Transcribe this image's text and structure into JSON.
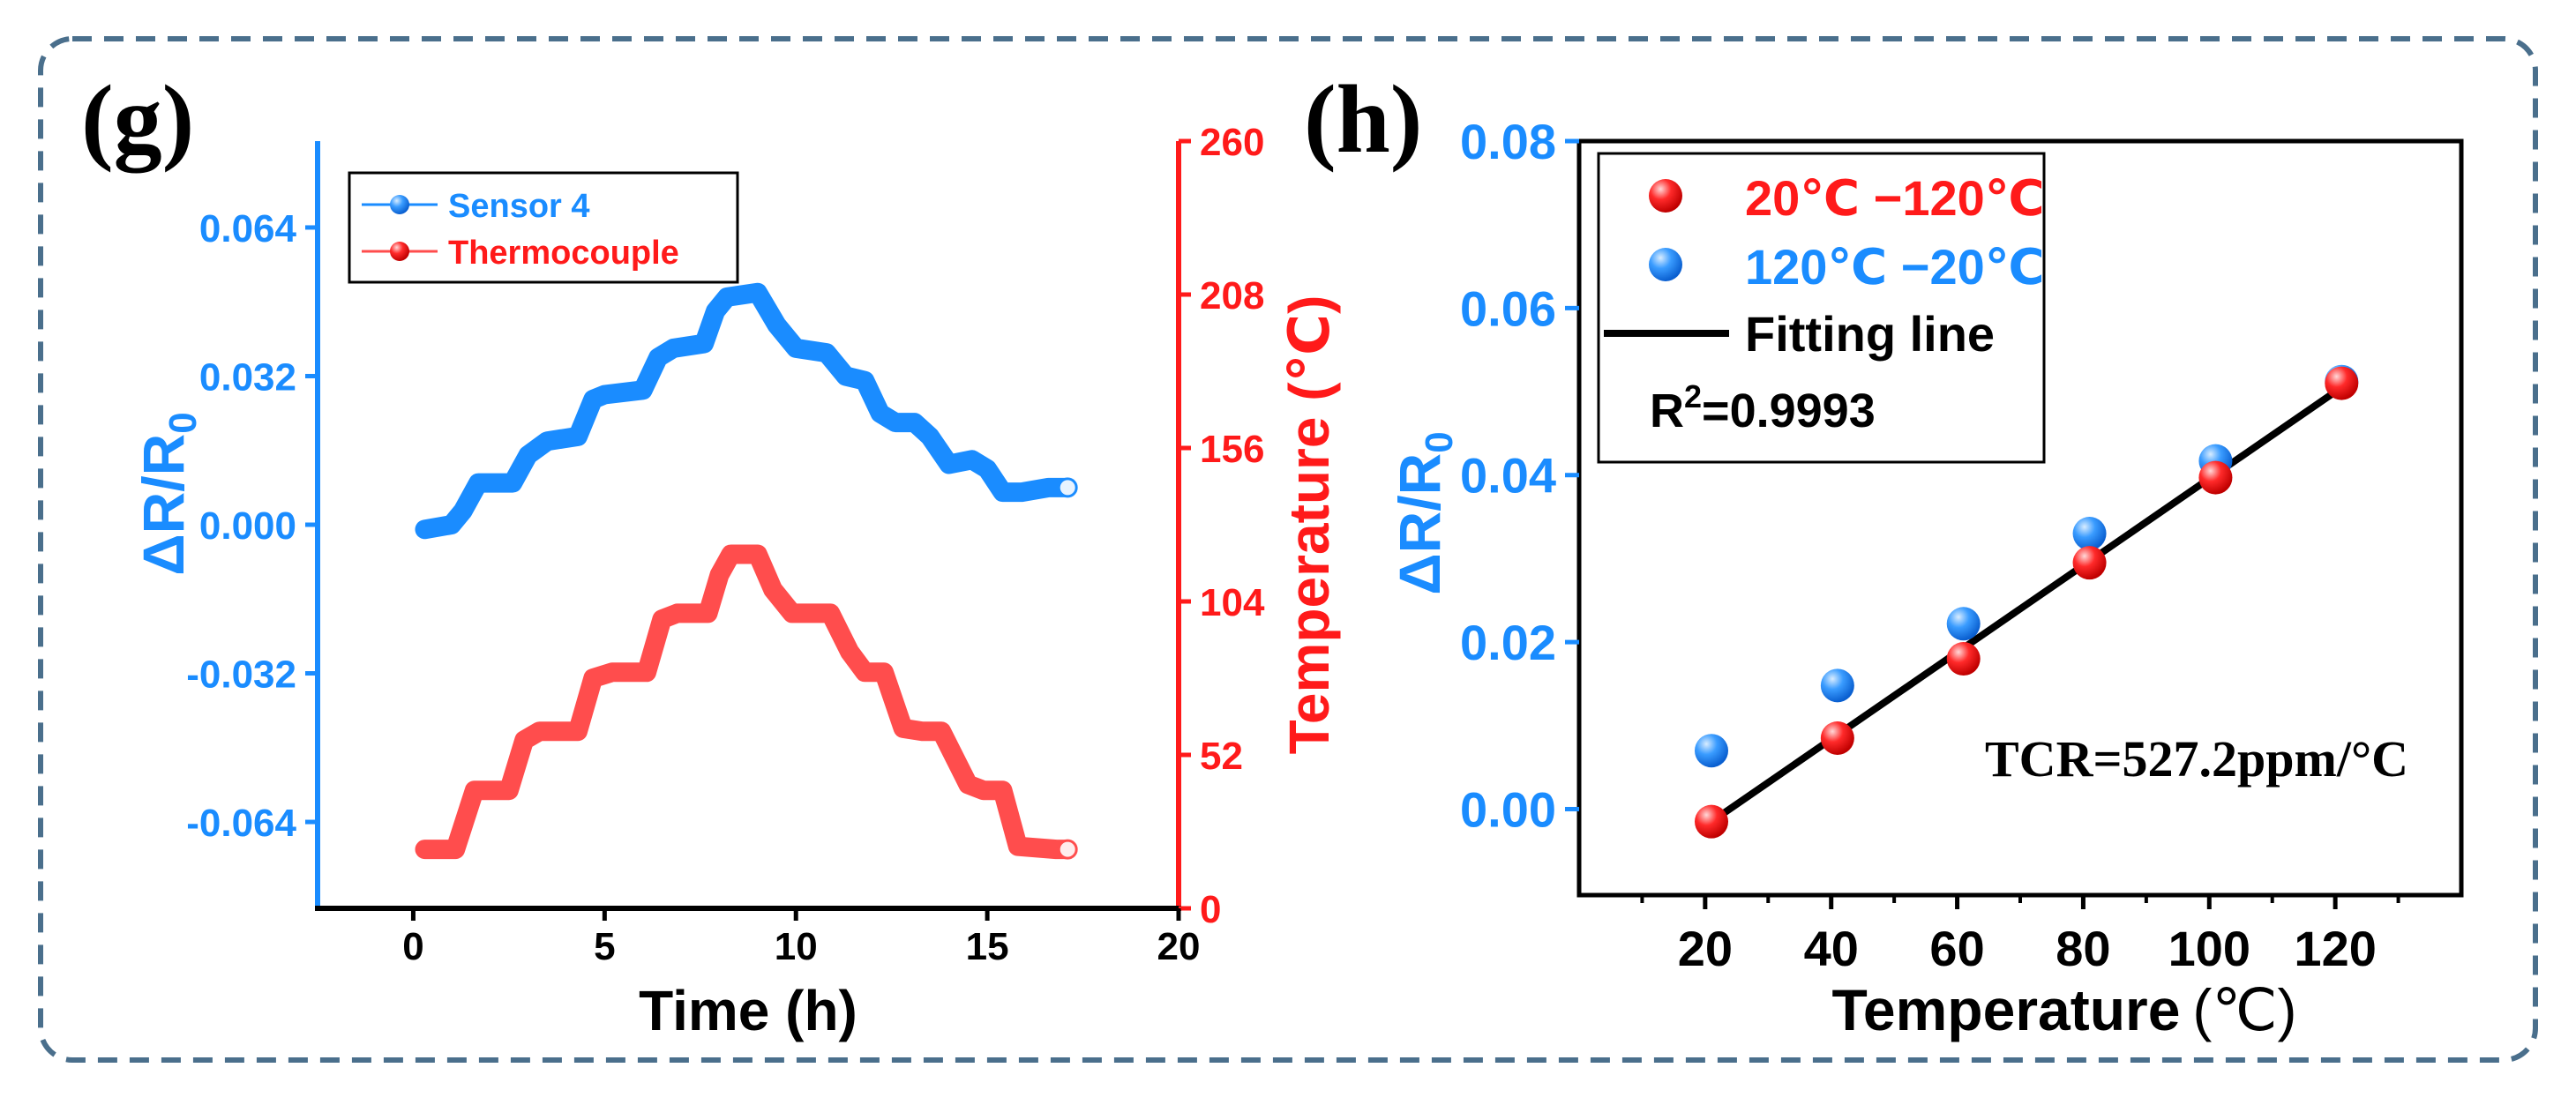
{
  "colors": {
    "blue": "#1a8cff",
    "red": "#ff1a1a",
    "black": "#000000",
    "frame": "#4a6f8c"
  },
  "chart_data": [
    {
      "panel": "(g)",
      "type": "line",
      "xlabel": "Time (h)",
      "xlim": [
        -2.5,
        20
      ],
      "xticks": [
        0,
        5,
        10,
        15,
        20
      ],
      "y_left": {
        "label_main": "ΔR/R",
        "label_sub": "0",
        "lim": [
          -0.0826,
          0.0826
        ],
        "ticks": [
          "0.064",
          "0.032",
          "0.000",
          "-0.032",
          "-0.064"
        ],
        "tick_values": [
          0.064,
          0.032,
          0.0,
          -0.032,
          -0.064
        ]
      },
      "y_right": {
        "label": "Temperature (℃)",
        "lim": [
          0,
          260
        ],
        "ticks": [
          "260",
          "208",
          "156",
          "104",
          "52",
          "0"
        ],
        "tick_values": [
          260,
          208,
          156,
          104,
          52,
          0
        ]
      },
      "legend": [
        "Sensor 4",
        "Thermocouple"
      ],
      "series": [
        {
          "name": "Sensor 4",
          "axis": "left",
          "color": "#1a8cff",
          "x": [
            0.3,
            1.0,
            1.3,
            1.7,
            2.6,
            3.0,
            3.5,
            4.3,
            4.7,
            5.0,
            6.0,
            6.4,
            6.8,
            7.6,
            7.9,
            8.2,
            9.0,
            9.5,
            10.0,
            10.8,
            11.3,
            11.8,
            12.2,
            12.6,
            13.1,
            13.5,
            14.0,
            14.6,
            15.0,
            15.4,
            15.9,
            16.6,
            17.1
          ],
          "y": [
            -0.001,
            0.0,
            0.003,
            0.009,
            0.009,
            0.015,
            0.018,
            0.019,
            0.027,
            0.028,
            0.029,
            0.036,
            0.038,
            0.039,
            0.046,
            0.049,
            0.05,
            0.043,
            0.038,
            0.037,
            0.032,
            0.031,
            0.024,
            0.022,
            0.022,
            0.019,
            0.013,
            0.014,
            0.012,
            0.007,
            0.007,
            0.008,
            0.008
          ]
        },
        {
          "name": "Thermocouple",
          "axis": "right",
          "color": "#ff4d4d",
          "x": [
            0.3,
            1.1,
            1.6,
            2.5,
            2.9,
            3.3,
            4.3,
            4.7,
            5.2,
            6.1,
            6.5,
            6.9,
            7.7,
            8.0,
            8.3,
            9.0,
            9.4,
            9.9,
            10.9,
            11.4,
            11.8,
            12.3,
            12.8,
            13.3,
            13.8,
            14.5,
            14.9,
            15.4,
            15.8,
            16.8,
            17.1
          ],
          "y": [
            20,
            20,
            40,
            40,
            57,
            60,
            60,
            78,
            80,
            80,
            98,
            100,
            100,
            113,
            120,
            120,
            108,
            100,
            100,
            87,
            80,
            80,
            61,
            60,
            60,
            42,
            40,
            40,
            21,
            20,
            20
          ]
        }
      ]
    },
    {
      "panel": "(h)",
      "type": "scatter",
      "xlabel": "Temperature",
      "xlabel_unit": "(℃)",
      "xlim": [
        0,
        140
      ],
      "xticks": [
        20,
        40,
        60,
        80,
        100,
        120
      ],
      "ylabel_main": "ΔR/R",
      "ylabel_sub": "0",
      "ylim": [
        -0.0103,
        0.08
      ],
      "yticks": [
        "0.08",
        "0.06",
        "0.04",
        "0.02",
        "0.00"
      ],
      "ytick_values": [
        0.08,
        0.06,
        0.04,
        0.02,
        0.0
      ],
      "legend": [
        "20℃ −120℃",
        "120℃ −20℃",
        "Fitting line"
      ],
      "annotations": {
        "r2_prefix": "R",
        "r2_sup": "2",
        "r2_value": "=0.9993",
        "tcr": "TCR=527.2ppm/°C"
      },
      "series": [
        {
          "name": "20℃ −120℃",
          "color": "#ff1a1a",
          "x": [
            21,
            41,
            61,
            81,
            101,
            121
          ],
          "y": [
            -0.0015,
            0.0085,
            0.018,
            0.0295,
            0.0397,
            0.051
          ]
        },
        {
          "name": "120℃ −20℃",
          "color": "#1a8cff",
          "x": [
            21,
            41,
            61,
            81,
            101,
            121
          ],
          "y": [
            0.007,
            0.0148,
            0.0222,
            0.033,
            0.0417,
            0.0512
          ]
        },
        {
          "name": "Fitting line",
          "type": "line",
          "color": "#000000",
          "x": [
            21,
            121
          ],
          "y": [
            -0.0015,
            0.0505
          ]
        }
      ]
    }
  ]
}
